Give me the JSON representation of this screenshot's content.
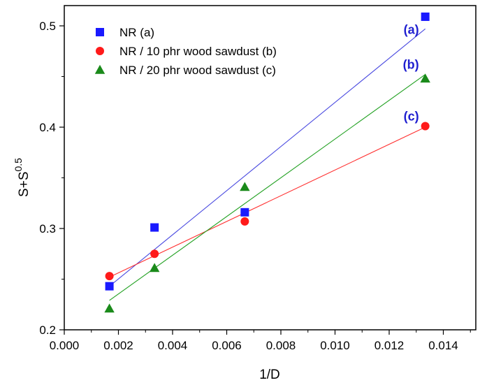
{
  "chart_data": {
    "type": "scatter",
    "xlabel": "1/D",
    "ylabel_base": "S+S",
    "ylabel_sup": "0.5",
    "xlim": [
      0.0,
      0.0152
    ],
    "ylim": [
      0.2,
      0.52
    ],
    "xticks": [
      "0.000",
      "0.002",
      "0.004",
      "0.006",
      "0.008",
      "0.010",
      "0.012",
      "0.014"
    ],
    "xtick_values": [
      0.0,
      0.002,
      0.004,
      0.006,
      0.008,
      0.01,
      0.012,
      0.014
    ],
    "yticks": [
      "0.2",
      "0.3",
      "0.4",
      "0.5"
    ],
    "ytick_values": [
      0.2,
      0.3,
      0.4,
      0.5
    ],
    "grid": false,
    "legend_position": "top-left",
    "series": [
      {
        "name": "NR (a)",
        "marker": "square",
        "color": "#1a1aff",
        "line_color": "#4a4ae0",
        "fit_label": "(a)",
        "x": [
          0.001667,
          0.003333,
          0.006667,
          0.013333
        ],
        "y": [
          0.243,
          0.301,
          0.316,
          0.509
        ],
        "fit": [
          [
            0.001667,
            0.243
          ],
          [
            0.013333,
            0.497
          ]
        ]
      },
      {
        "name": "NR / 10 phr wood sawdust (b)",
        "marker": "circle",
        "color": "#ff1a1a",
        "line_color": "#ff3030",
        "fit_label": "(b)",
        "x": [
          0.001667,
          0.003333,
          0.006667,
          0.013333
        ],
        "y": [
          0.253,
          0.275,
          0.307,
          0.401
        ],
        "fit": [
          [
            0.001667,
            0.252
          ],
          [
            0.013333,
            0.4
          ]
        ]
      },
      {
        "name": "NR / 20 phr wood sawdust (c)",
        "marker": "triangle",
        "color": "#1a8a1a",
        "line_color": "#20a020",
        "fit_label": "(c)",
        "x": [
          0.001667,
          0.003333,
          0.006667,
          0.013333
        ],
        "y": [
          0.221,
          0.261,
          0.341,
          0.448
        ],
        "fit": [
          [
            0.001667,
            0.229
          ],
          [
            0.013333,
            0.452
          ]
        ]
      }
    ],
    "fit_label_color": "#2020d0"
  }
}
